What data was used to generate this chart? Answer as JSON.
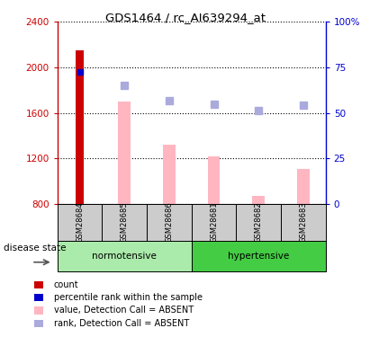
{
  "title": "GDS1464 / rc_AI639294_at",
  "samples": [
    "GSM28684",
    "GSM28685",
    "GSM28686",
    "GSM28681",
    "GSM28682",
    "GSM28683"
  ],
  "bar_bottom": 800,
  "ylim_left": [
    800,
    2400
  ],
  "ylim_right": [
    0,
    100
  ],
  "yticks_left": [
    800,
    1200,
    1600,
    2000,
    2400
  ],
  "yticks_right": [
    0,
    25,
    50,
    75,
    100
  ],
  "count_bar": {
    "sample_idx": 0,
    "value": 2150,
    "color": "#CC0000"
  },
  "percentile_bar": {
    "sample_idx": 0,
    "value": 1960,
    "color": "#0000CC"
  },
  "value_absent_bars": {
    "values": [
      null,
      1700,
      1320,
      1220,
      870,
      1110
    ],
    "color": "#FFB6C1"
  },
  "rank_absent_dots": {
    "values": [
      null,
      1840,
      1710,
      1680,
      1620,
      1670
    ],
    "color": "#AAAADD"
  },
  "dotted_grid_color": "black",
  "left_axis_color": "#CC0000",
  "right_axis_color": "#0000CC",
  "sample_cell_color": "#CCCCCC",
  "group_cell_normotensive_color": "#AAEAAA",
  "group_cell_hypertensive_color": "#44CC44",
  "disease_state_label": "disease state",
  "arrow_color": "#555555",
  "legend_items": [
    {
      "color": "#CC0000",
      "label": "count"
    },
    {
      "color": "#0000CC",
      "label": "percentile rank within the sample"
    },
    {
      "color": "#FFB6C1",
      "label": "value, Detection Call = ABSENT"
    },
    {
      "color": "#AAAADD",
      "label": "rank, Detection Call = ABSENT"
    }
  ]
}
